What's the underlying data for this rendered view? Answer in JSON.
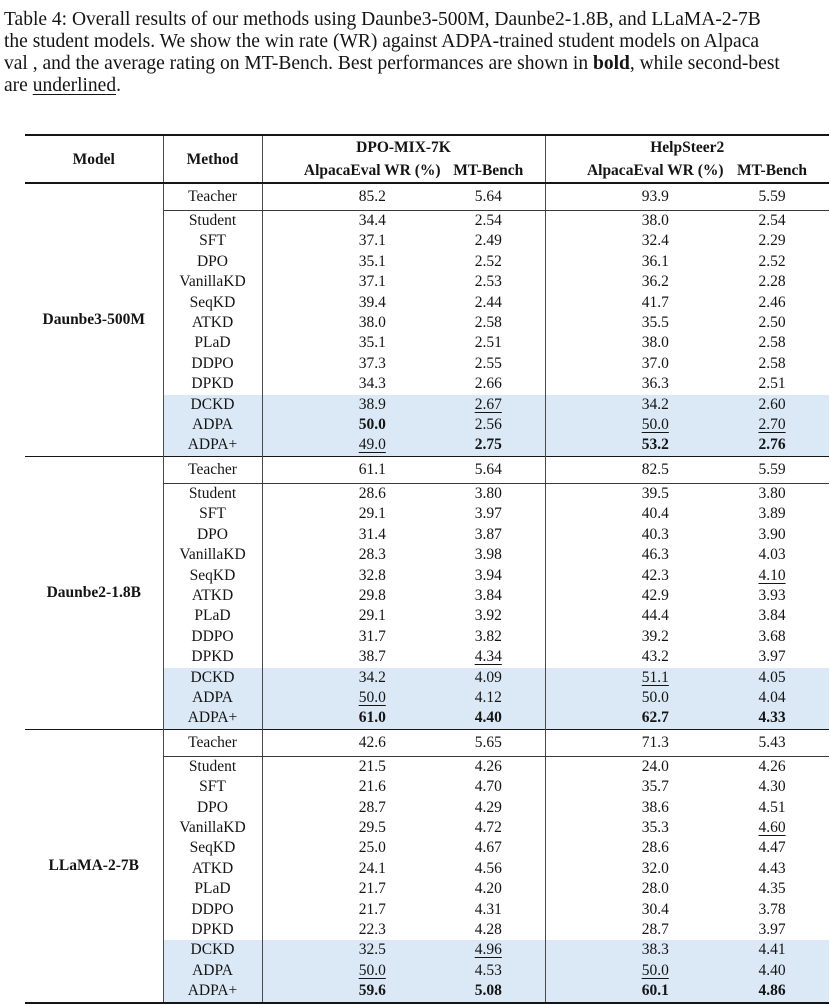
{
  "colors": {
    "highlight": "#dbe9f6"
  },
  "caption": {
    "line1": "Table 4: Overall results of our methods using Daunbe3-500M, Daunbe2-1.8B, and LLaMA-2-7B",
    "line2": "the student models. We show the win rate (WR) against ADPA-trained student models on Alpaca",
    "line3_pre": "val , and the average rating on MT-Bench. Best performances are shown in ",
    "line3_bold": "bold",
    "line3_post": ", while second-best",
    "line4_pre": "are ",
    "line4_underline": "underlined",
    "line4_post": "."
  },
  "table": {
    "header": {
      "model": "Model",
      "method": "Method",
      "groups": [
        {
          "name": "DPO-MIX-7K",
          "cols": [
            "AlpacaEval WR (%)",
            "MT-Bench"
          ]
        },
        {
          "name": "HelpSteer2",
          "cols": [
            "AlpacaEval WR (%)",
            "MT-Bench"
          ]
        }
      ]
    },
    "blocks": [
      {
        "model": "Daunbe3-500M",
        "teacher": {
          "method": "Teacher",
          "values": [
            "85.2",
            "5.64",
            "93.9",
            "5.59"
          ]
        },
        "rows": [
          {
            "m": "Student",
            "c": [
              "34.4",
              "2.54",
              "38.0",
              "2.54"
            ],
            "s": [
              "",
              "",
              "",
              ""
            ],
            "hl": false
          },
          {
            "m": "SFT",
            "c": [
              "37.1",
              "2.49",
              "32.4",
              "2.29"
            ],
            "s": [
              "",
              "",
              "",
              ""
            ],
            "hl": false
          },
          {
            "m": "DPO",
            "c": [
              "35.1",
              "2.52",
              "36.1",
              "2.52"
            ],
            "s": [
              "",
              "",
              "",
              ""
            ],
            "hl": false
          },
          {
            "m": "VanillaKD",
            "c": [
              "37.1",
              "2.53",
              "36.2",
              "2.28"
            ],
            "s": [
              "",
              "",
              "",
              ""
            ],
            "hl": false
          },
          {
            "m": "SeqKD",
            "c": [
              "39.4",
              "2.44",
              "41.7",
              "2.46"
            ],
            "s": [
              "",
              "",
              "",
              ""
            ],
            "hl": false
          },
          {
            "m": "ATKD",
            "c": [
              "38.0",
              "2.58",
              "35.5",
              "2.50"
            ],
            "s": [
              "",
              "",
              "",
              ""
            ],
            "hl": false
          },
          {
            "m": "PLaD",
            "c": [
              "35.1",
              "2.51",
              "38.0",
              "2.58"
            ],
            "s": [
              "",
              "",
              "",
              ""
            ],
            "hl": false
          },
          {
            "m": "DDPO",
            "c": [
              "37.3",
              "2.55",
              "37.0",
              "2.58"
            ],
            "s": [
              "",
              "",
              "",
              ""
            ],
            "hl": false
          },
          {
            "m": "DPKD",
            "c": [
              "34.3",
              "2.66",
              "36.3",
              "2.51"
            ],
            "s": [
              "",
              "",
              "",
              ""
            ],
            "hl": false
          },
          {
            "m": "DCKD",
            "c": [
              "38.9",
              "2.67",
              "34.2",
              "2.60"
            ],
            "s": [
              "",
              "u",
              "",
              ""
            ],
            "hl": true
          },
          {
            "m": "ADPA",
            "c": [
              "50.0",
              "2.56",
              "50.0",
              "2.70"
            ],
            "s": [
              "b",
              "",
              "u",
              "u"
            ],
            "hl": true
          },
          {
            "m": "ADPA+",
            "c": [
              "49.0",
              "2.75",
              "53.2",
              "2.76"
            ],
            "s": [
              "u",
              "b",
              "b",
              "b"
            ],
            "hl": true
          }
        ]
      },
      {
        "model": "Daunbe2-1.8B",
        "teacher": {
          "method": "Teacher",
          "values": [
            "61.1",
            "5.64",
            "82.5",
            "5.59"
          ]
        },
        "rows": [
          {
            "m": "Student",
            "c": [
              "28.6",
              "3.80",
              "39.5",
              "3.80"
            ],
            "s": [
              "",
              "",
              "",
              ""
            ],
            "hl": false
          },
          {
            "m": "SFT",
            "c": [
              "29.1",
              "3.97",
              "40.4",
              "3.89"
            ],
            "s": [
              "",
              "",
              "",
              ""
            ],
            "hl": false
          },
          {
            "m": "DPO",
            "c": [
              "31.4",
              "3.87",
              "40.3",
              "3.90"
            ],
            "s": [
              "",
              "",
              "",
              ""
            ],
            "hl": false
          },
          {
            "m": "VanillaKD",
            "c": [
              "28.3",
              "3.98",
              "46.3",
              "4.03"
            ],
            "s": [
              "",
              "",
              "",
              ""
            ],
            "hl": false
          },
          {
            "m": "SeqKD",
            "c": [
              "32.8",
              "3.94",
              "42.3",
              "4.10"
            ],
            "s": [
              "",
              "",
              "",
              "u"
            ],
            "hl": false
          },
          {
            "m": "ATKD",
            "c": [
              "29.8",
              "3.84",
              "42.9",
              "3.93"
            ],
            "s": [
              "",
              "",
              "",
              ""
            ],
            "hl": false
          },
          {
            "m": "PLaD",
            "c": [
              "29.1",
              "3.92",
              "44.4",
              "3.84"
            ],
            "s": [
              "",
              "",
              "",
              ""
            ],
            "hl": false
          },
          {
            "m": "DDPO",
            "c": [
              "31.7",
              "3.82",
              "39.2",
              "3.68"
            ],
            "s": [
              "",
              "",
              "",
              ""
            ],
            "hl": false
          },
          {
            "m": "DPKD",
            "c": [
              "38.7",
              "4.34",
              "43.2",
              "3.97"
            ],
            "s": [
              "",
              "u",
              "",
              ""
            ],
            "hl": false
          },
          {
            "m": "DCKD",
            "c": [
              "34.2",
              "4.09",
              "51.1",
              "4.05"
            ],
            "s": [
              "",
              "",
              "u",
              ""
            ],
            "hl": true
          },
          {
            "m": "ADPA",
            "c": [
              "50.0",
              "4.12",
              "50.0",
              "4.04"
            ],
            "s": [
              "u",
              "",
              "",
              ""
            ],
            "hl": true
          },
          {
            "m": "ADPA+",
            "c": [
              "61.0",
              "4.40",
              "62.7",
              "4.33"
            ],
            "s": [
              "b",
              "b",
              "b",
              "b"
            ],
            "hl": true
          }
        ]
      },
      {
        "model": "LLaMA-2-7B",
        "teacher": {
          "method": "Teacher",
          "values": [
            "42.6",
            "5.65",
            "71.3",
            "5.43"
          ]
        },
        "rows": [
          {
            "m": "Student",
            "c": [
              "21.5",
              "4.26",
              "24.0",
              "4.26"
            ],
            "s": [
              "",
              "",
              "",
              ""
            ],
            "hl": false
          },
          {
            "m": "SFT",
            "c": [
              "21.6",
              "4.70",
              "35.7",
              "4.30"
            ],
            "s": [
              "",
              "",
              "",
              ""
            ],
            "hl": false
          },
          {
            "m": "DPO",
            "c": [
              "28.7",
              "4.29",
              "38.6",
              "4.51"
            ],
            "s": [
              "",
              "",
              "",
              ""
            ],
            "hl": false
          },
          {
            "m": "VanillaKD",
            "c": [
              "29.5",
              "4.72",
              "35.3",
              "4.60"
            ],
            "s": [
              "",
              "",
              "",
              "u"
            ],
            "hl": false
          },
          {
            "m": "SeqKD",
            "c": [
              "25.0",
              "4.67",
              "28.6",
              "4.47"
            ],
            "s": [
              "",
              "",
              "",
              ""
            ],
            "hl": false
          },
          {
            "m": "ATKD",
            "c": [
              "24.1",
              "4.56",
              "32.0",
              "4.43"
            ],
            "s": [
              "",
              "",
              "",
              ""
            ],
            "hl": false
          },
          {
            "m": "PLaD",
            "c": [
              "21.7",
              "4.20",
              "28.0",
              "4.35"
            ],
            "s": [
              "",
              "",
              "",
              ""
            ],
            "hl": false
          },
          {
            "m": "DDPO",
            "c": [
              "21.7",
              "4.31",
              "30.4",
              "3.78"
            ],
            "s": [
              "",
              "",
              "",
              ""
            ],
            "hl": false
          },
          {
            "m": "DPKD",
            "c": [
              "22.3",
              "4.28",
              "28.7",
              "3.97"
            ],
            "s": [
              "",
              "",
              "",
              ""
            ],
            "hl": false
          },
          {
            "m": "DCKD",
            "c": [
              "32.5",
              "4.96",
              "38.3",
              "4.41"
            ],
            "s": [
              "",
              "u",
              "",
              ""
            ],
            "hl": true
          },
          {
            "m": "ADPA",
            "c": [
              "50.0",
              "4.53",
              "50.0",
              "4.40"
            ],
            "s": [
              "u",
              "",
              "u",
              ""
            ],
            "hl": true
          },
          {
            "m": "ADPA+",
            "c": [
              "59.6",
              "5.08",
              "60.1",
              "4.86"
            ],
            "s": [
              "b",
              "b",
              "b",
              "b"
            ],
            "hl": true
          }
        ]
      }
    ]
  }
}
